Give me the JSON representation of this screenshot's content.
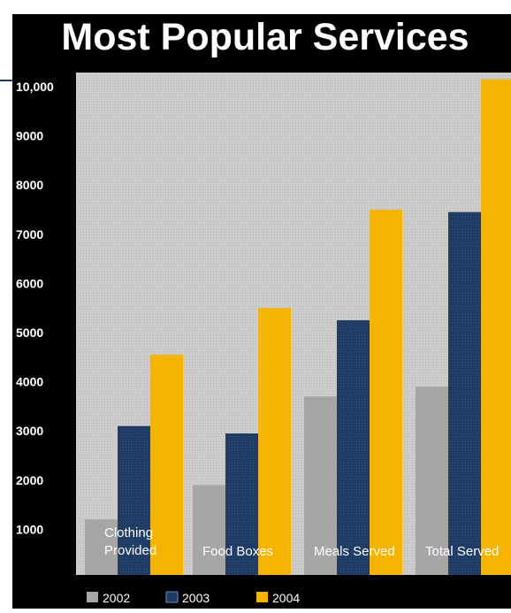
{
  "chart_data": {
    "type": "bar",
    "title": "Most Popular Services",
    "categories": [
      "Clothing Provided",
      "Food Boxes",
      "Meals Served",
      "Total Served"
    ],
    "category_lines": [
      [
        "Clothing",
        "Provided"
      ],
      [
        "Food Boxes"
      ],
      [
        "Meals Served"
      ],
      [
        "Total Served"
      ]
    ],
    "series": [
      {
        "name": "2002",
        "values": [
          1200,
          1900,
          3700,
          3900
        ]
      },
      {
        "name": "2003",
        "values": [
          3100,
          2950,
          5250,
          7450
        ]
      },
      {
        "name": "2004",
        "values": [
          4550,
          5500,
          7500,
          10150
        ]
      }
    ],
    "y_ticks": [
      {
        "value": 1000,
        "label": "1000"
      },
      {
        "value": 2000,
        "label": "2000"
      },
      {
        "value": 3000,
        "label": "3000"
      },
      {
        "value": 4000,
        "label": "4000"
      },
      {
        "value": 5000,
        "label": "5000"
      },
      {
        "value": 6000,
        "label": "6000"
      },
      {
        "value": 7000,
        "label": "7000"
      },
      {
        "value": 8000,
        "label": "8000"
      },
      {
        "value": 9000,
        "label": "9000"
      },
      {
        "value": 10000,
        "label": "10,000"
      }
    ],
    "ylim": [
      0,
      10000
    ],
    "xlabel": "",
    "ylabel": "",
    "grid": false,
    "legend_position": "bottom",
    "colors": {
      "2002": "#a6a6a6",
      "2003": "#1f3b63",
      "2004": "#f5b400",
      "background": "#000000",
      "plot_area": "#cdcdcd",
      "title_text": "#ffffff",
      "tick_text": "#ffffff",
      "accent_line": "#1f3b63"
    }
  }
}
